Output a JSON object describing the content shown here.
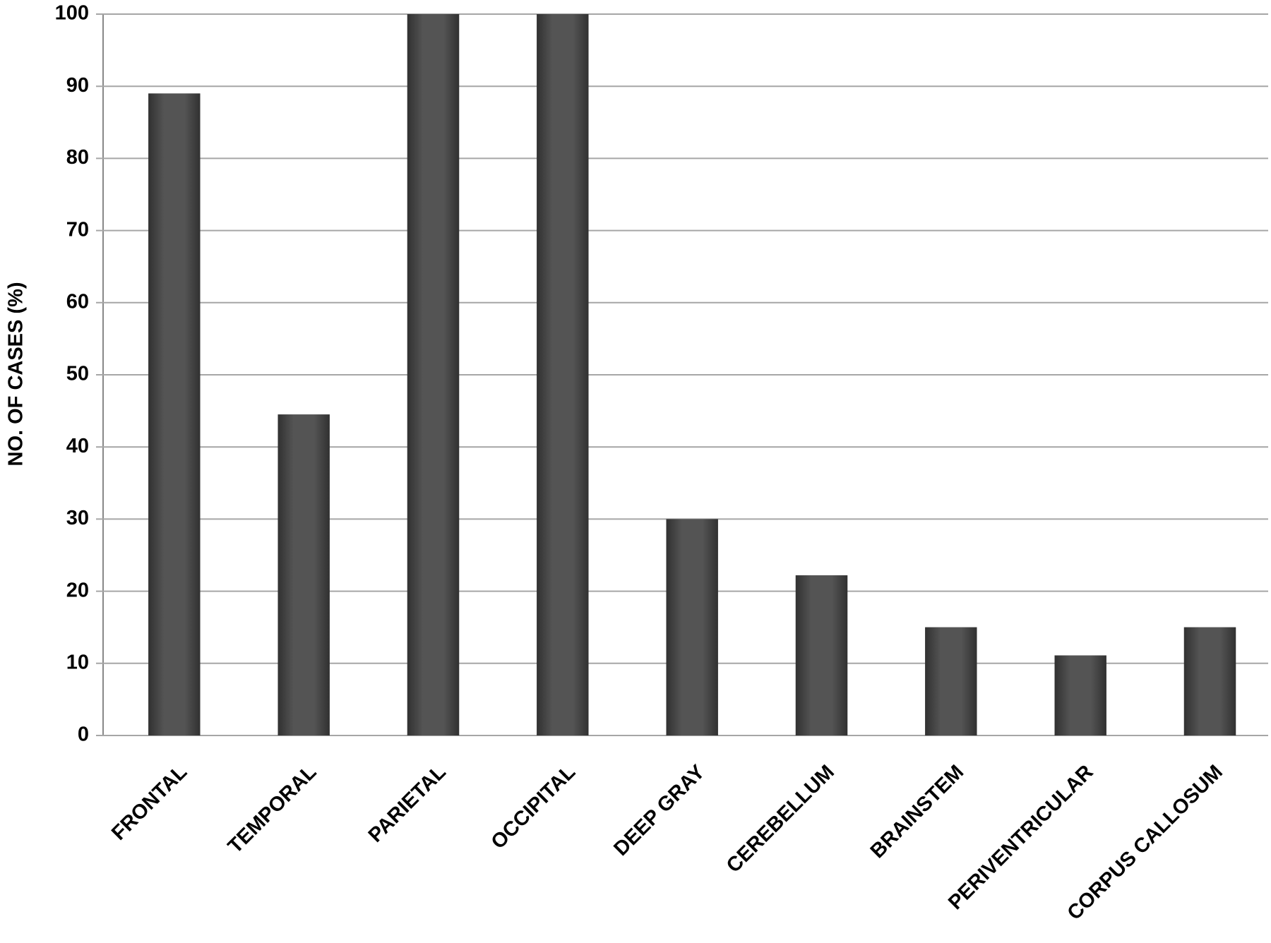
{
  "chart_data": {
    "type": "bar",
    "y_label": "NO. OF CASES (%)",
    "categories": [
      "FRONTAL",
      "TEMPORAL",
      "PARIETAL",
      "OCCIPITAL",
      "DEEP GRAY",
      "CEREBELLUM",
      "BRAINSTEM",
      "PERIVENTRICULAR",
      "CORPUS CALLOSUM"
    ],
    "values": [
      89,
      44.5,
      100,
      100,
      30,
      22.2,
      15,
      11.1,
      15
    ],
    "color": "#4a4a4a",
    "ylim": [
      0,
      100
    ],
    "yticks": [
      0,
      10,
      20,
      30,
      40,
      50,
      60,
      70,
      80,
      90,
      100
    ],
    "grid": true
  }
}
